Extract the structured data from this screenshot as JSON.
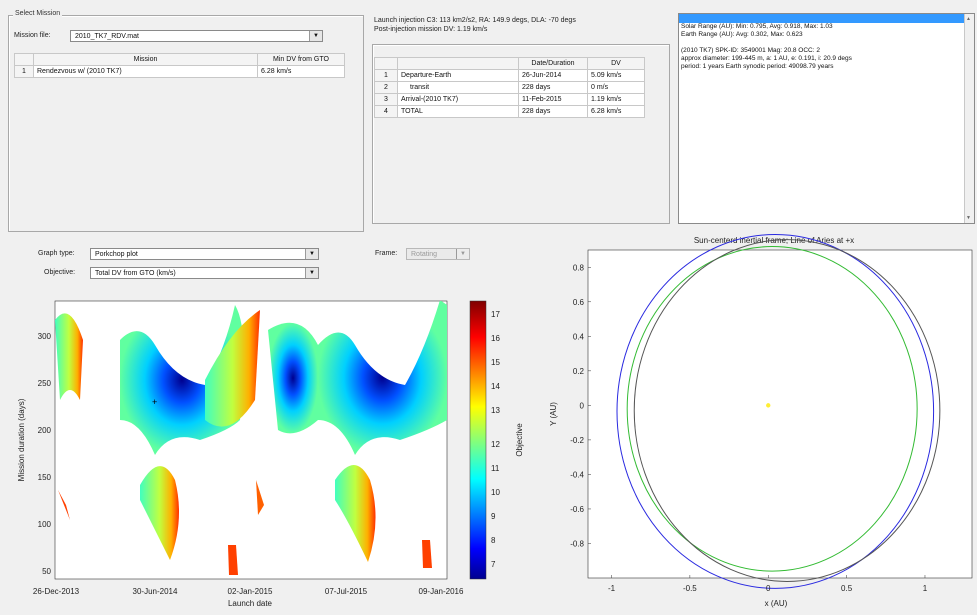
{
  "select_mission": {
    "legend": "Select Mission",
    "file_label": "Mission file:",
    "file_value": "2010_TK7_RDV.mat",
    "table": {
      "headers": [
        "",
        "Mission",
        "Min DV from GTO"
      ],
      "rows": [
        [
          "1",
          "Rendezvous w/ (2010 TK7)",
          "6.28 km/s"
        ]
      ]
    }
  },
  "mission_summary": {
    "line1": "Launch injection C3: 113 km2/s2, RA: 149.9 degs, DLA: -70 degs",
    "line2": "Post-injection mission DV: 1.19 km/s",
    "table": {
      "headers": [
        "",
        "",
        "Date/Duration",
        "DV"
      ],
      "rows": [
        [
          "1",
          "Departure-Earth",
          "26-Jun-2014",
          "5.09 km/s"
        ],
        [
          "2",
          "transit",
          "228 days",
          "0 m/s"
        ],
        [
          "3",
          "Arrival-(2010 TK7)",
          "11-Feb-2015",
          "1.19 km/s"
        ],
        [
          "4",
          "TOTAL",
          "228 days",
          "6.28 km/s"
        ]
      ]
    }
  },
  "target_info": {
    "lines": [
      "",
      "Solar Range (AU):   Min: 0.795, Avg: 0.918, Max: 1.03",
      "Earth Range (AU):   Avg: 0.302, Max: 0.623",
      "",
      "(2010 TK7)    SPK-ID: 3549001    Mag: 20.8    OCC: 2",
      " approx diameter: 199-445 m,  a: 1 AU,  e: 0.191,  i: 20.9 degs",
      " period: 1 years   Earth synodic period: 49098.79 years"
    ]
  },
  "graph_controls": {
    "graph_type_label": "Graph type:",
    "graph_type_value": "Porkchop plot",
    "objective_label": "Objective:",
    "objective_value": "Total DV from GTO (km/s)",
    "frame_label": "Frame:",
    "frame_value": "Rotating"
  },
  "chart_data": [
    {
      "type": "heatmap",
      "title": "",
      "xlabel": "Launch date",
      "ylabel": "Mission duration (days)",
      "x_ticks": [
        "26-Dec-2013",
        "30-Jun-2014",
        "02-Jan-2015",
        "07-Jul-2015",
        "09-Jan-2016"
      ],
      "y_ticks": [
        50,
        100,
        150,
        200,
        250,
        300
      ],
      "ylim": [
        40,
        335
      ],
      "colorbar": {
        "label": "Objective",
        "ticks": [
          7,
          8,
          9,
          10,
          11,
          12,
          13,
          14,
          15,
          16,
          17
        ],
        "range": [
          6.3,
          17.4
        ]
      },
      "minimum_marker": {
        "launch_date": "26-Jun-2014",
        "duration_days": 228
      }
    },
    {
      "type": "line",
      "title": "Sun-centerd inertial frame; Line of Aries at +x",
      "xlabel": "x (AU)",
      "ylabel": "Y (AU)",
      "xlim": [
        -1.15,
        1.3
      ],
      "ylim": [
        -1.0,
        0.9
      ],
      "x_ticks": [
        -1,
        -0.5,
        0,
        0.5,
        1
      ],
      "y_ticks": [
        -0.8,
        -0.6,
        -0.4,
        -0.2,
        0,
        0.2,
        0.4,
        0.6,
        0.8
      ],
      "series": [
        {
          "name": "",
          "color": "#2a2ae0",
          "center": [
            0.045,
            -0.035
          ],
          "rx": 1.01,
          "ry": 1.025
        },
        {
          "name": "",
          "color": "#33bb33",
          "center": [
            0.025,
            -0.02
          ],
          "rx": 0.925,
          "ry": 0.94
        },
        {
          "name": "",
          "color": "#555555",
          "center": [
            0.12,
            -0.03
          ],
          "rx": 0.975,
          "ry": 0.99
        }
      ],
      "sun": {
        "x": 0,
        "y": 0,
        "color": "#ffee33"
      }
    }
  ]
}
